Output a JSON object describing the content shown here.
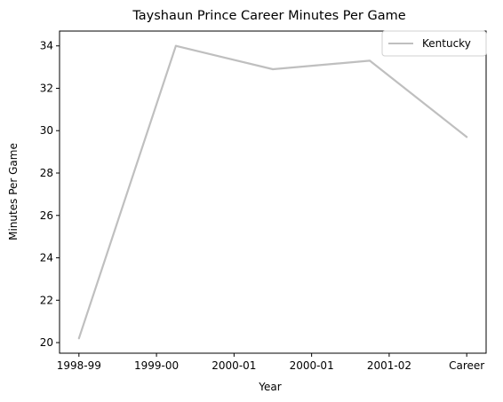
{
  "chart_data": {
    "type": "line",
    "title": "Tayshaun Prince Career Minutes Per Game",
    "xlabel": "Year",
    "ylabel": "Minutes Per Game",
    "x_tick_labels": [
      "1998-99",
      "1999-00",
      "2000-01",
      "2000-01",
      "2001-02",
      "Career"
    ],
    "y_ticks": [
      20,
      22,
      24,
      26,
      28,
      30,
      32,
      34
    ],
    "ylim": [
      19.5,
      34.7
    ],
    "grid": false,
    "legend_position": "top-right",
    "series": [
      {
        "name": "Kentucky",
        "color": "#bfbfbf",
        "points": [
          {
            "x": 0.0,
            "y": 20.2
          },
          {
            "x": 1.25,
            "y": 34.0
          },
          {
            "x": 2.5,
            "y": 32.9
          },
          {
            "x": 3.75,
            "y": 33.3
          },
          {
            "x": 5.0,
            "y": 29.7
          }
        ]
      }
    ],
    "xlim": [
      -0.25,
      5.25
    ]
  }
}
